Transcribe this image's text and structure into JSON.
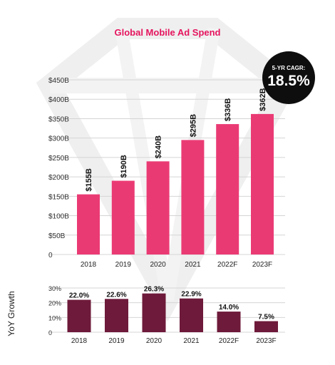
{
  "chart_data": [
    {
      "type": "bar",
      "title": "Global Mobile Ad Spend",
      "categories": [
        "2018",
        "2019",
        "2020",
        "2021",
        "2022F",
        "2023F"
      ],
      "values": [
        155,
        190,
        240,
        295,
        336,
        362
      ],
      "data_labels": [
        "$155B",
        "$190B",
        "$240B",
        "$295B",
        "$336B",
        "$362B"
      ],
      "yticks": [
        "0",
        "$50B",
        "$100B",
        "$150B",
        "$200B",
        "$250B",
        "$300B",
        "$350B",
        "$400B",
        "$450B"
      ],
      "ylim": [
        0,
        450
      ],
      "xlabel": "",
      "ylabel": "",
      "grid": true,
      "color": "#ea3a74",
      "annotation": {
        "label": "5-YR CAGR:",
        "value": "18.5%"
      }
    },
    {
      "type": "bar",
      "categories": [
        "2018",
        "2019",
        "2020",
        "2021",
        "2022F",
        "2023F"
      ],
      "values": [
        22.0,
        22.6,
        26.3,
        22.9,
        14.0,
        7.5
      ],
      "data_labels": [
        "22.0%",
        "22.6%",
        "26.3%",
        "22.9%",
        "14.0%",
        "7.5%"
      ],
      "yticks": [
        "0",
        "10%",
        "20%",
        "30%"
      ],
      "ylim": [
        0,
        30
      ],
      "xlabel": "",
      "ylabel": "YoY Growth",
      "grid": true,
      "color": "#6e1a3a"
    }
  ],
  "colors": {
    "accent": "#e5155e",
    "watermark": "#eeeeee",
    "grid": "#d4d4d4",
    "text": "#1a1a1a"
  }
}
